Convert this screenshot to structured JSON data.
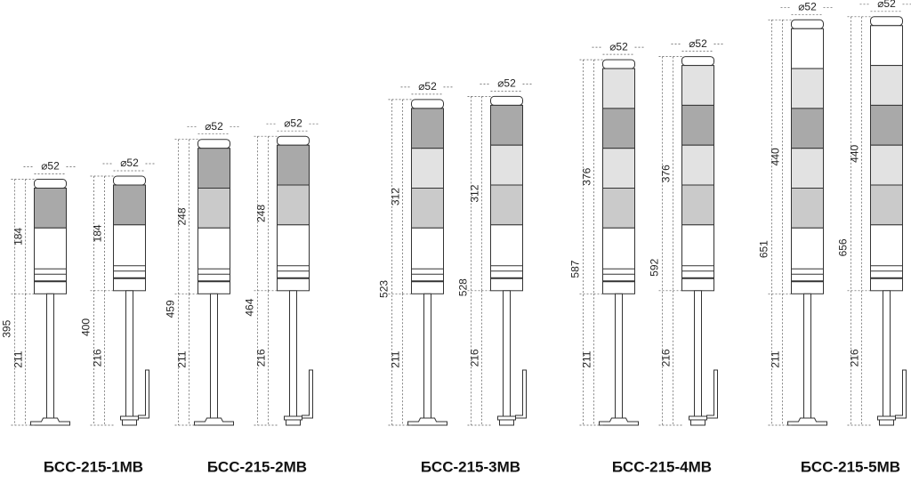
{
  "models": [
    {
      "name": "БСС-215-1МВ",
      "towers": [
        {
          "diameter": "⌀52",
          "total": 395,
          "section": 184,
          "pole": 211
        },
        {
          "diameter": "⌀52",
          "total": 400,
          "section": 184,
          "pole": 216
        }
      ]
    },
    {
      "name": "БСС-215-2МВ",
      "towers": [
        {
          "diameter": "⌀52",
          "total": 459,
          "section": 248,
          "pole": 211
        },
        {
          "diameter": "⌀52",
          "total": 464,
          "section": 248,
          "pole": 216
        }
      ]
    },
    {
      "name": "БСС-215-3МВ",
      "towers": [
        {
          "diameter": "⌀52",
          "total": 523,
          "section": 312,
          "pole": 211
        },
        {
          "diameter": "⌀52",
          "total": 528,
          "section": 312,
          "pole": 216
        }
      ]
    },
    {
      "name": "БСС-215-4МВ",
      "towers": [
        {
          "diameter": "⌀52",
          "total": 587,
          "section": 376,
          "pole": 211
        },
        {
          "diameter": "⌀52",
          "total": 592,
          "section": 376,
          "pole": 216
        }
      ]
    },
    {
      "name": "БСС-215-5МВ",
      "towers": [
        {
          "diameter": "⌀52",
          "total": 651,
          "section": 440,
          "pole": 211
        },
        {
          "diameter": "⌀52",
          "total": 656,
          "section": 440,
          "pole": 216
        }
      ]
    }
  ]
}
